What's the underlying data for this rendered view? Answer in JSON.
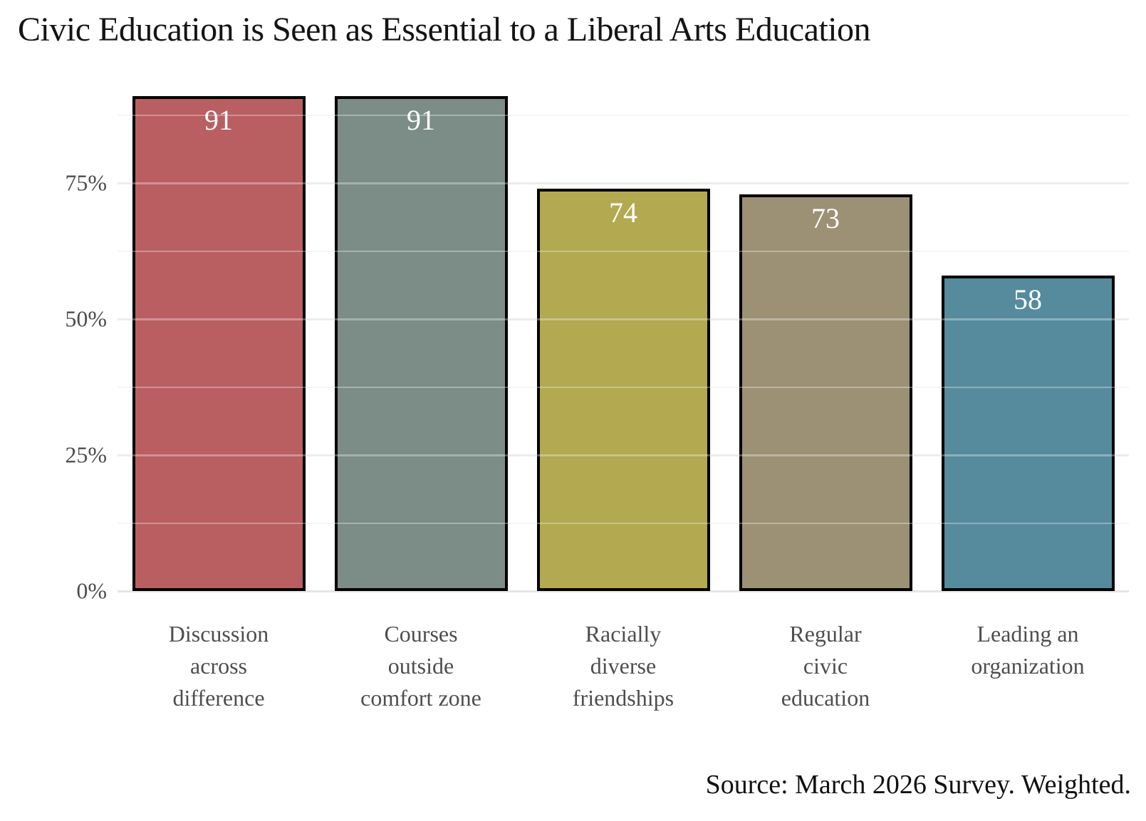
{
  "chart_data": {
    "type": "bar",
    "title": "Civic Education is Seen as Essential to a Liberal Arts Education",
    "source_note": "Source: March 2026 Survey. Weighted.",
    "categories": [
      "Discussion across difference",
      "Courses outside comfort zone",
      "Racially diverse friendships",
      "Regular civic education",
      "Leading an organization"
    ],
    "category_tick_labels": [
      "Discussion\nacross\ndifference",
      "Courses\noutside\ncomfort zone",
      "Racially\ndiverse\nfriendships",
      "Regular\ncivic\neducation",
      "Leading an\norganization"
    ],
    "values": [
      91,
      91,
      74,
      73,
      58
    ],
    "value_labels": [
      "91",
      "91",
      "74",
      "73",
      "58"
    ],
    "units": "percent",
    "bar_colors": [
      "#b95f62",
      "#7b8d86",
      "#b2a950",
      "#9c9175",
      "#568b9d"
    ],
    "bar_border_color": "#000000",
    "value_label_color": "#ffffff",
    "xlabel": "",
    "ylabel": "",
    "ylim": [
      0,
      95.6
    ],
    "yticks": [
      {
        "value": 0,
        "label": "0%"
      },
      {
        "value": 25,
        "label": "25%"
      },
      {
        "value": 50,
        "label": "50%"
      },
      {
        "value": 75,
        "label": "75%"
      }
    ],
    "minor_gridlines": [
      12.5,
      37.5,
      62.5,
      87.5
    ],
    "grid": "horizontal",
    "legend": "none",
    "title_color": "#141414",
    "axis_text_color": "#4e4e4e",
    "background_color": "#ffffff"
  }
}
